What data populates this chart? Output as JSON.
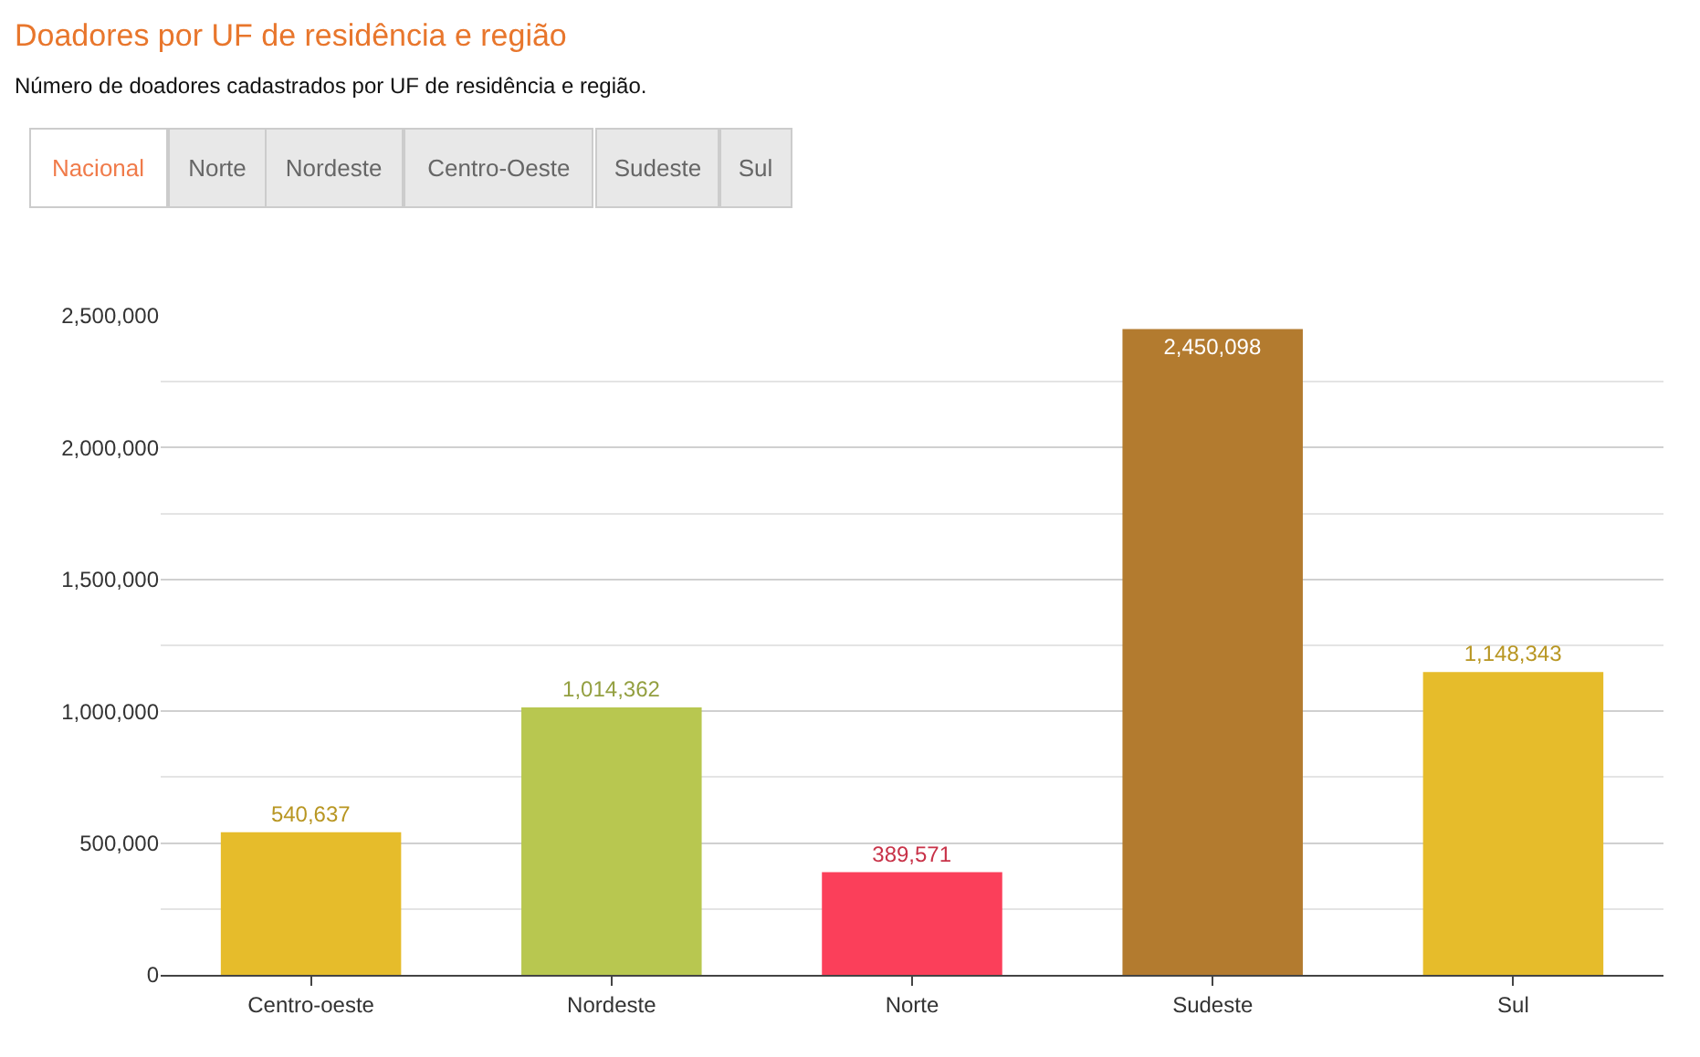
{
  "chart_data": {
    "type": "bar",
    "title": "Doadores por UF de residência e região",
    "subtitle": "Número de doadores cadastrados por UF de residência e região.",
    "annotations": [
      "Nacional",
      "Norte",
      "Nordeste",
      "Centro-Oeste",
      "Sudeste",
      "Sul"
    ],
    "categories": [
      "Centro-oeste",
      "Nordeste",
      "Norte",
      "Sudeste",
      "Sul"
    ],
    "values": [
      540637,
      1014362,
      389571,
      2450098,
      1148343
    ],
    "colors": [
      "#e6bc2b",
      "#b8c750",
      "#fb3f5a",
      "#b37b2f",
      "#e6bc2b"
    ],
    "value_labels": [
      "540,637",
      "1,014,362",
      "389,571",
      "2,450,098",
      "1,148,343"
    ],
    "ylim": [
      0,
      2500000
    ],
    "yticks": [
      {
        "value": 0,
        "label": "0"
      },
      {
        "value": 500000,
        "label": "500,000"
      },
      {
        "value": 1000000,
        "label": "1,000,000"
      },
      {
        "value": 1500000,
        "label": "1,500,000"
      },
      {
        "value": 2000000,
        "label": "2,000,000"
      },
      {
        "value": 2500000,
        "label": "2,500,000"
      }
    ],
    "grid": "y"
  }
}
